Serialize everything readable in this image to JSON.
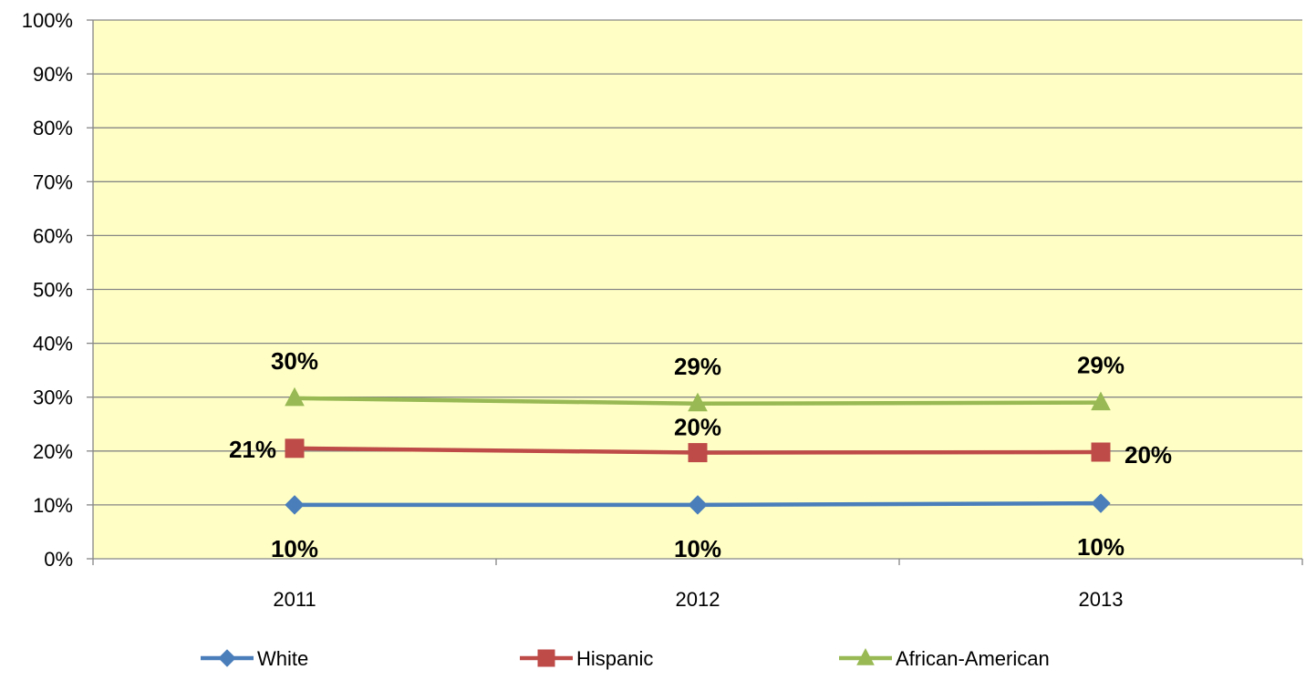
{
  "chart_data": {
    "type": "line",
    "categories": [
      "2011",
      "2012",
      "2013"
    ],
    "series": [
      {
        "name": "White",
        "values": [
          10,
          10,
          10.3
        ],
        "labels": [
          "10%",
          "10%",
          "10%"
        ],
        "color": "#4a7ebb",
        "marker": "diamond",
        "label_position": "below"
      },
      {
        "name": "Hispanic",
        "values": [
          20.5,
          19.7,
          19.8
        ],
        "labels": [
          "21%",
          "20%",
          "20%"
        ],
        "color": "#be4b48",
        "marker": "square",
        "label_position": "mixed"
      },
      {
        "name": "African-American",
        "values": [
          29.8,
          28.8,
          29
        ],
        "labels": [
          "30%",
          "29%",
          "29%"
        ],
        "color": "#98b954",
        "marker": "triangle",
        "label_position": "above"
      }
    ],
    "ylim": [
      0,
      100
    ],
    "yticks": [
      0,
      10,
      20,
      30,
      40,
      50,
      60,
      70,
      80,
      90,
      100
    ],
    "ytick_labels": [
      "0%",
      "10%",
      "20%",
      "30%",
      "40%",
      "50%",
      "60%",
      "70%",
      "80%",
      "90%",
      "100%"
    ],
    "title": "",
    "xlabel": "",
    "ylabel": "",
    "grid": true,
    "plot_background": "#ffffc5",
    "legend_position": "bottom"
  }
}
